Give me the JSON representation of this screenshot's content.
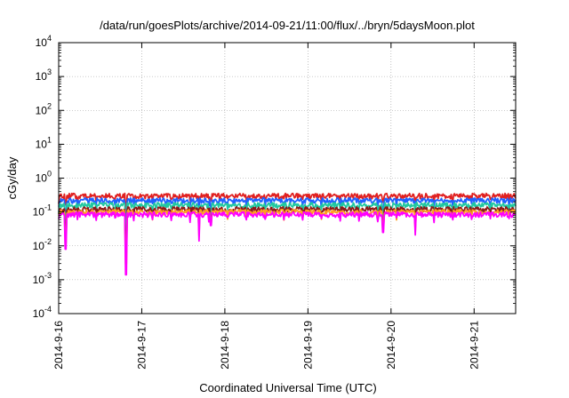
{
  "chart_data": {
    "type": "line",
    "title": "/data/run/goesPlots/archive/2014-09-21/11:00/flux/../bryn/5daysMoon.plot",
    "xlabel": "Coordinated Universal Time (UTC)",
    "ylabel": "cGy/day",
    "x_scale": "time",
    "y_scale": "log",
    "xlim": [
      "2014-09-16T00:00",
      "2014-09-21T12:00"
    ],
    "ylim": [
      0.0001,
      10000
    ],
    "x_ticks": [
      "2014-9-16",
      "2014-9-17",
      "2014-9-18",
      "2014-9-19",
      "2014-9-20",
      "2014-9-21"
    ],
    "y_ticks": [
      {
        "base": "10",
        "exp": "-4",
        "value": 0.0001
      },
      {
        "base": "10",
        "exp": "-3",
        "value": 0.001
      },
      {
        "base": "10",
        "exp": "-2",
        "value": 0.01
      },
      {
        "base": "10",
        "exp": "-1",
        "value": 0.1
      },
      {
        "base": "10",
        "exp": "0",
        "value": 1
      },
      {
        "base": "10",
        "exp": "1",
        "value": 10
      },
      {
        "base": "10",
        "exp": "2",
        "value": 100
      },
      {
        "base": "10",
        "exp": "3",
        "value": 1000
      },
      {
        "base": "10",
        "exp": "4",
        "value": 10000
      }
    ],
    "grid": true,
    "legend": "none",
    "series": [
      {
        "color": "#e02020",
        "base_value": 0.3
      },
      {
        "color": "#2060ff",
        "base_value": 0.22
      },
      {
        "color": "#20c8a0",
        "base_value": 0.16
      },
      {
        "color": "#8b1a1a",
        "base_value": 0.12
      },
      {
        "color": "#ffa020",
        "base_value": 0.1
      },
      {
        "color": "#ff00ff",
        "base_value": 0.085
      }
    ],
    "dips": [
      {
        "x": "2014-09-16T02:00",
        "value": 0.008
      },
      {
        "x": "2014-09-16T19:30",
        "value": 0.0014
      },
      {
        "x": "2014-09-17T16:30",
        "value": 0.014
      },
      {
        "x": "2014-09-17T20:00",
        "value": 0.04
      },
      {
        "x": "2014-09-19T21:40",
        "value": 0.025
      },
      {
        "x": "2014-09-20T07:00",
        "value": 0.03
      }
    ]
  }
}
